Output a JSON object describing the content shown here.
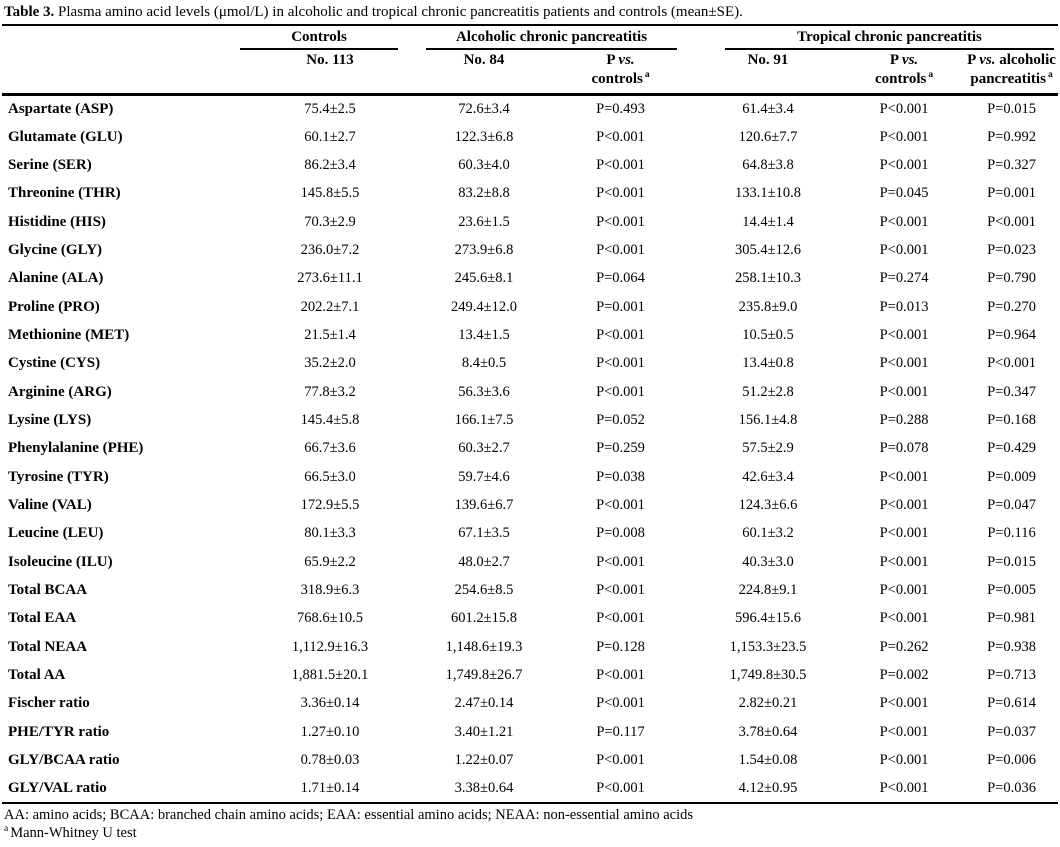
{
  "title": {
    "label": "Table 3.",
    "text": " Plasma amino acid levels (μmol/L) in alcoholic and tropical chronic pancreatitis patients and controls (mean±SE)."
  },
  "header": {
    "groups": {
      "controls": "Controls",
      "alcoholic": "Alcoholic chronic pancreatitis",
      "tropical": "Tropical chronic pancreatitis"
    },
    "sub": {
      "n_controls": "No. 113",
      "n_alcoholic": "No. 84",
      "n_tropical": "No. 91",
      "p_word": "P",
      "vs_word": "vs.",
      "controls_word": "controls",
      "alcoholic_word": "alcoholic",
      "pancreatitis_word": "pancreatitis",
      "sup_mark": "a"
    }
  },
  "table": {
    "columns": [
      "",
      "Controls No. 113",
      "Alcoholic No. 84",
      "P vs. controls",
      "Tropical No. 91",
      "P vs. controls",
      "P vs. alcoholic pancreatitis"
    ],
    "rows": [
      {
        "name": "Aspartate (ASP)",
        "values": [
          "75.4±2.5",
          "72.6±3.4",
          "P=0.493",
          "61.4±3.4",
          "P<0.001",
          "P=0.015"
        ]
      },
      {
        "name": "Glutamate (GLU)",
        "values": [
          "60.1±2.7",
          "122.3±6.8",
          "P<0.001",
          "120.6±7.7",
          "P<0.001",
          "P=0.992"
        ]
      },
      {
        "name": "Serine (SER)",
        "values": [
          "86.2±3.4",
          "60.3±4.0",
          "P<0.001",
          "64.8±3.8",
          "P<0.001",
          "P=0.327"
        ]
      },
      {
        "name": "Threonine (THR)",
        "values": [
          "145.8±5.5",
          "83.2±8.8",
          "P<0.001",
          "133.1±10.8",
          "P=0.045",
          "P=0.001"
        ]
      },
      {
        "name": "Histidine (HIS)",
        "values": [
          "70.3±2.9",
          "23.6±1.5",
          "P<0.001",
          "14.4±1.4",
          "P<0.001",
          "P<0.001"
        ]
      },
      {
        "name": "Glycine (GLY)",
        "values": [
          "236.0±7.2",
          "273.9±6.8",
          "P<0.001",
          "305.4±12.6",
          "P<0.001",
          "P=0.023"
        ]
      },
      {
        "name": "Alanine (ALA)",
        "values": [
          "273.6±11.1",
          "245.6±8.1",
          "P=0.064",
          "258.1±10.3",
          "P=0.274",
          "P=0.790"
        ]
      },
      {
        "name": "Proline (PRO)",
        "values": [
          "202.2±7.1",
          "249.4±12.0",
          "P=0.001",
          "235.8±9.0",
          "P=0.013",
          "P=0.270"
        ]
      },
      {
        "name": "Methionine (MET)",
        "values": [
          "21.5±1.4",
          "13.4±1.5",
          "P<0.001",
          "10.5±0.5",
          "P<0.001",
          "P=0.964"
        ]
      },
      {
        "name": "Cystine (CYS)",
        "values": [
          "35.2±2.0",
          "8.4±0.5",
          "P<0.001",
          "13.4±0.8",
          "P<0.001",
          "P<0.001"
        ]
      },
      {
        "name": "Arginine (ARG)",
        "values": [
          "77.8±3.2",
          "56.3±3.6",
          "P<0.001",
          "51.2±2.8",
          "P<0.001",
          "P=0.347"
        ]
      },
      {
        "name": "Lysine (LYS)",
        "values": [
          "145.4±5.8",
          "166.1±7.5",
          "P=0.052",
          "156.1±4.8",
          "P=0.288",
          "P=0.168"
        ]
      },
      {
        "name": "Phenylalanine (PHE)",
        "values": [
          "66.7±3.6",
          "60.3±2.7",
          "P=0.259",
          "57.5±2.9",
          "P=0.078",
          "P=0.429"
        ]
      },
      {
        "name": "Tyrosine (TYR)",
        "values": [
          "66.5±3.0",
          "59.7±4.6",
          "P=0.038",
          "42.6±3.4",
          "P<0.001",
          "P=0.009"
        ]
      },
      {
        "name": "Valine (VAL)",
        "values": [
          "172.9±5.5",
          "139.6±6.7",
          "P<0.001",
          "124.3±6.6",
          "P<0.001",
          "P=0.047"
        ]
      },
      {
        "name": "Leucine (LEU)",
        "values": [
          "80.1±3.3",
          "67.1±3.5",
          "P=0.008",
          "60.1±3.2",
          "P<0.001",
          "P=0.116"
        ]
      },
      {
        "name": "Isoleucine (ILU)",
        "values": [
          "65.9±2.2",
          "48.0±2.7",
          "P<0.001",
          "40.3±3.0",
          "P<0.001",
          "P=0.015"
        ]
      },
      {
        "name": "Total BCAA",
        "values": [
          "318.9±6.3",
          "254.6±8.5",
          "P<0.001",
          "224.8±9.1",
          "P<0.001",
          "P=0.005"
        ]
      },
      {
        "name": "Total EAA",
        "values": [
          "768.6±10.5",
          "601.2±15.8",
          "P<0.001",
          "596.4±15.6",
          "P<0.001",
          "P=0.981"
        ]
      },
      {
        "name": "Total NEAA",
        "values": [
          "1,112.9±16.3",
          "1,148.6±19.3",
          "P=0.128",
          "1,153.3±23.5",
          "P=0.262",
          "P=0.938"
        ]
      },
      {
        "name": "Total AA",
        "values": [
          "1,881.5±20.1",
          "1,749.8±26.7",
          "P<0.001",
          "1,749.8±30.5",
          "P=0.002",
          "P=0.713"
        ]
      },
      {
        "name": "Fischer ratio",
        "values": [
          "3.36±0.14",
          "2.47±0.14",
          "P<0.001",
          "2.82±0.21",
          "P<0.001",
          "P=0.614"
        ]
      },
      {
        "name": "PHE/TYR ratio",
        "values": [
          "1.27±0.10",
          "3.40±1.21",
          "P=0.117",
          "3.78±0.64",
          "P<0.001",
          "P=0.037"
        ]
      },
      {
        "name": "GLY/BCAA ratio",
        "values": [
          "0.78±0.03",
          "1.22±0.07",
          "P<0.001",
          "1.54±0.08",
          "P<0.001",
          "P=0.006"
        ]
      },
      {
        "name": "GLY/VAL ratio",
        "values": [
          "1.71±0.14",
          "3.38±0.64",
          "P<0.001",
          "4.12±0.95",
          "P<0.001",
          "P=0.036"
        ]
      }
    ]
  },
  "footnotes": {
    "abbreviations": "AA: amino acids; BCAA: branched chain amino acids; EAA: essential amino acids; NEAA: non-essential amino acids",
    "sup_mark": "a",
    "test": "Mann-Whitney U test"
  }
}
